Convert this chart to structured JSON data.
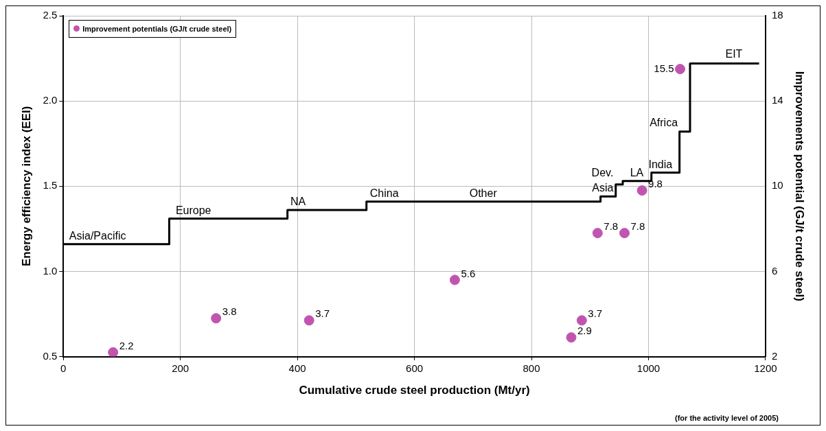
{
  "chart_data": {
    "type": "scatter",
    "xlabel": "Cumulative crude steel production (Mt/yr)",
    "ylabel": "Energy efficiency index (EEI)",
    "y2label": "Improvements potential (GJ/t crude steel)",
    "series": [
      {
        "type": "step",
        "color": "#000000",
        "x": [
          0,
          181,
          383,
          518,
          918,
          944,
          956,
          1005,
          1053,
          1071,
          1189
        ],
        "values": [
          1.16,
          1.31,
          1.36,
          1.41,
          1.44,
          1.51,
          1.53,
          1.58,
          1.82,
          2.22,
          2.22
        ]
      },
      {
        "name": "Improvement potentials (GJ/t crude steel)",
        "color": "#c055b0",
        "axis": "y2",
        "marker": "circle",
        "x": [
          85,
          261,
          420,
          669,
          868,
          886,
          913,
          959,
          989,
          1054
        ],
        "values": [
          2.2,
          3.8,
          3.7,
          5.6,
          2.9,
          3.7,
          7.8,
          7.8,
          9.8,
          15.5
        ],
        "value_labels": [
          "2.2",
          "3.8",
          "3.7",
          "5.6",
          "2.9",
          "3.7",
          "7.8",
          "7.8",
          "9.8",
          "15.5"
        ]
      }
    ],
    "xlim": [
      0,
      1200
    ],
    "xticks": [
      0,
      200,
      400,
      600,
      800,
      1000,
      1200
    ],
    "ylim": [
      0.5,
      2.5
    ],
    "yticks": [
      0.5,
      {
        "value": 1,
        "label": "1.0"
      },
      1.5,
      {
        "value": 2,
        "label": "2.0"
      },
      2.5
    ],
    "y2lim": [
      2,
      18
    ],
    "y2ticks": [
      2,
      6,
      10,
      14,
      18
    ],
    "grid": true,
    "legend": "top left",
    "annotations": [
      "Asia/Pacific",
      "Europe",
      "NA",
      "China",
      "Other",
      "Dev. Asia",
      "LA",
      "India",
      "Africa",
      "EIT",
      "(for the activity level of 2005)"
    ]
  }
}
